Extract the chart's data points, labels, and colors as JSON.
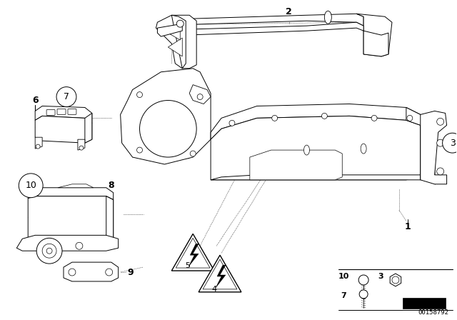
{
  "bg": "#ffffff",
  "lc": "#000000",
  "lw": 0.7,
  "fw": 6.4,
  "fh": 4.48,
  "dpi": 100,
  "footer": "00158792",
  "fs_label": 8,
  "fs_footer": 6.5
}
